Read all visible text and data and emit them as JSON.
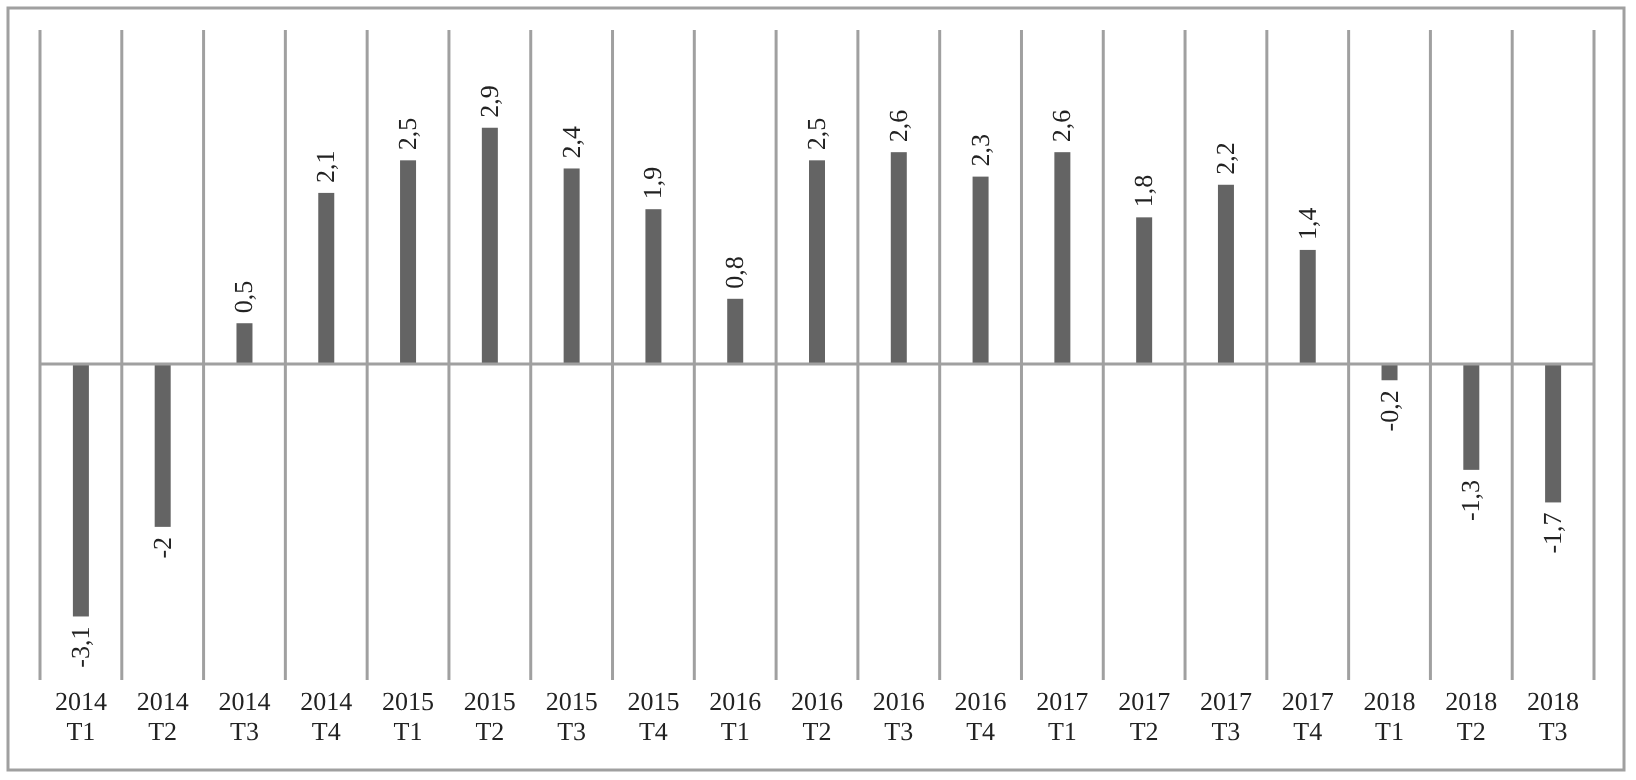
{
  "chart_data": {
    "type": "bar",
    "categories": [
      "2014 T1",
      "2014 T2",
      "2014 T3",
      "2014 T4",
      "2015 T1",
      "2015 T2",
      "2015 T3",
      "2015 T4",
      "2016 T1",
      "2016 T2",
      "2016 T3",
      "2016 T4",
      "2017 T1",
      "2017 T2",
      "2017 T3",
      "2017 T4",
      "2018 T1",
      "2018 T2",
      "2018 T3"
    ],
    "values": [
      -3.1,
      -2,
      0.5,
      2.1,
      2.5,
      2.9,
      2.4,
      1.9,
      0.8,
      2.5,
      2.6,
      2.3,
      2.6,
      1.8,
      2.2,
      1.4,
      -0.2,
      -1.3,
      -1.7
    ],
    "value_labels": [
      "-3,1",
      "-2",
      "0,5",
      "2,1",
      "2,5",
      "2,9",
      "2,4",
      "1,9",
      "0,8",
      "2,5",
      "2,6",
      "2,3",
      "2,6",
      "1,8",
      "2,2",
      "1,4",
      "-0,2",
      "-1,3",
      "-1,7"
    ],
    "color": "#646464",
    "grid": "x"
  }
}
